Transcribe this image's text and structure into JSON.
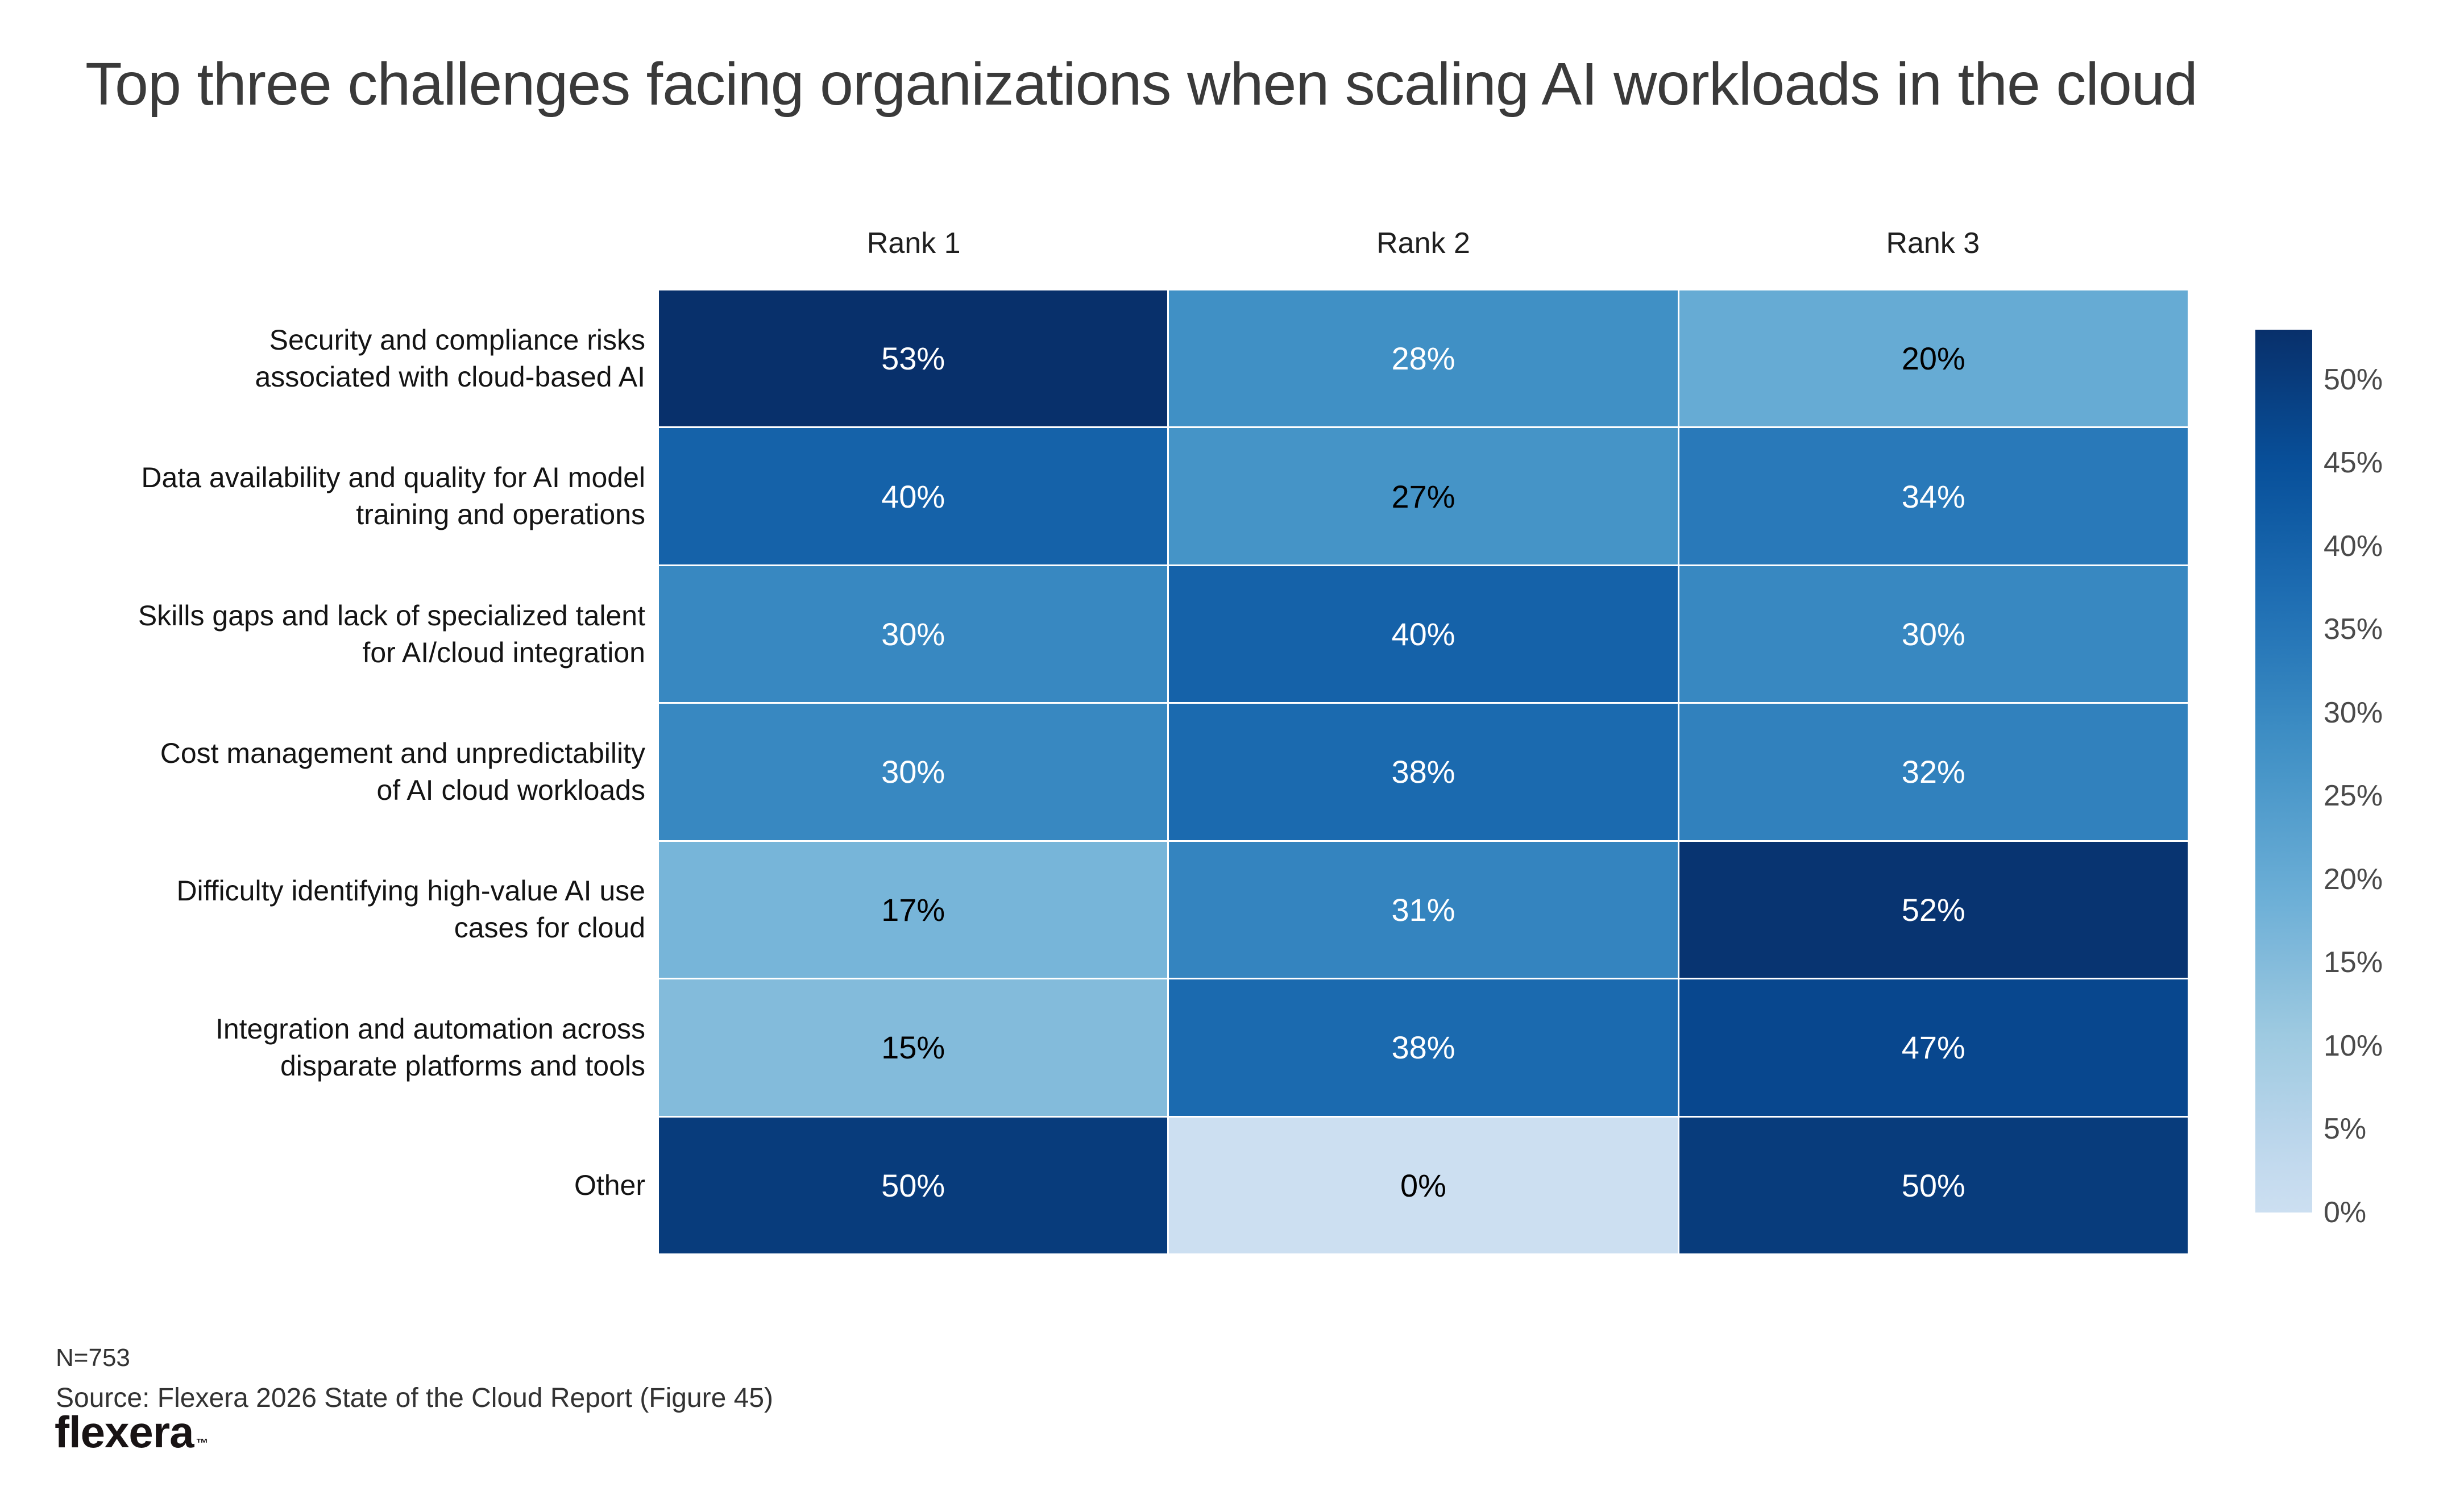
{
  "title": "Top three challenges facing organizations when scaling AI workloads in the cloud",
  "chart_data": {
    "type": "heatmap",
    "columns": [
      "Rank 1",
      "Rank 2",
      "Rank 3"
    ],
    "rows": [
      {
        "label": "Security and compliance risks associated with cloud-based AI",
        "label_lines": [
          "Security and compliance risks",
          "associated with cloud-based AI"
        ],
        "values": [
          53,
          28,
          20
        ],
        "display": [
          "53%",
          "28%",
          "20%"
        ]
      },
      {
        "label": "Data availability and quality for AI model training and operations",
        "label_lines": [
          "Data availability and quality for AI model",
          "training and operations"
        ],
        "values": [
          40,
          27,
          34
        ],
        "display": [
          "40%",
          "27%",
          "34%"
        ]
      },
      {
        "label": "Skills gaps and lack of specialized talent for AI/cloud integration",
        "label_lines": [
          "Skills gaps and lack of specialized talent",
          "for AI/cloud integration"
        ],
        "values": [
          30,
          40,
          30
        ],
        "display": [
          "30%",
          "40%",
          "30%"
        ]
      },
      {
        "label": "Cost management and unpredictability of AI cloud workloads",
        "label_lines": [
          "Cost management and unpredictability",
          "of AI cloud workloads"
        ],
        "values": [
          30,
          38,
          32
        ],
        "display": [
          "30%",
          "38%",
          "32%"
        ]
      },
      {
        "label": "Difficulty identifying high-value AI use cases for cloud",
        "label_lines": [
          "Difficulty identifying high-value AI use",
          "cases for cloud"
        ],
        "values": [
          17,
          31,
          52
        ],
        "display": [
          "17%",
          "31%",
          "52%"
        ]
      },
      {
        "label": "Integration and automation across disparate platforms and tools",
        "label_lines": [
          "Integration and automation across",
          "disparate platforms and tools"
        ],
        "values": [
          15,
          38,
          47
        ],
        "display": [
          "15%",
          "38%",
          "47%"
        ]
      },
      {
        "label": "Other",
        "label_lines": [
          "Other"
        ],
        "values": [
          50,
          0,
          50
        ],
        "display": [
          "50%",
          "0%",
          "50%"
        ]
      }
    ],
    "colorbar": {
      "ticks": [
        {
          "value": 50,
          "label": "50%"
        },
        {
          "value": 45,
          "label": "45%"
        },
        {
          "value": 40,
          "label": "40%"
        },
        {
          "value": 35,
          "label": "35%"
        },
        {
          "value": 30,
          "label": "30%"
        },
        {
          "value": 25,
          "label": "25%"
        },
        {
          "value": 20,
          "label": "20%"
        },
        {
          "value": 15,
          "label": "15%"
        },
        {
          "value": 10,
          "label": "10%"
        },
        {
          "value": 5,
          "label": "5%"
        },
        {
          "value": 0,
          "label": "0%"
        }
      ]
    },
    "colormap": {
      "name": "blues-truncated",
      "anchors": [
        "#f7fbff",
        "#deebf7",
        "#c6dbef",
        "#9ecae1",
        "#6baed6",
        "#4292c6",
        "#2171b5",
        "#08519c",
        "#08306b"
      ],
      "range_start": 0.22,
      "range_end": 1.0,
      "vmin": 0,
      "vmax": 53
    },
    "dark_text_max_value": 27
  },
  "colors": {
    "background": "#ffffff",
    "title": "#3a3a3a",
    "column_header": "#1f1f1f",
    "row_label": "#141414",
    "cell_text_dark": "#000000",
    "cell_text_light": "#ffffff",
    "colorbar_tick": "#4a4a4a",
    "footer_text": "#333333",
    "logo": "#181314",
    "grid_gap": "#ffffff"
  },
  "footer": {
    "n": "N=753",
    "source": "Source: Flexera 2026 State of the Cloud Report (Figure 45)",
    "logo_text": "flexera"
  }
}
